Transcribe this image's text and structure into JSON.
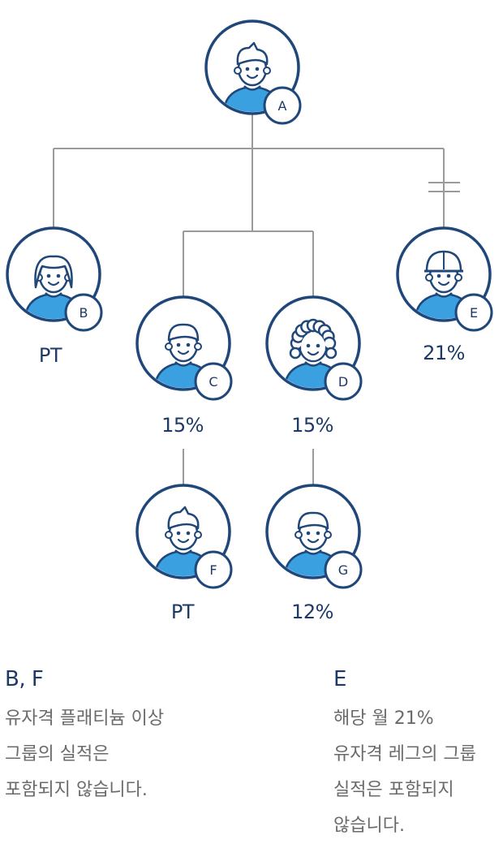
{
  "colors": {
    "ring": "#1f4779",
    "skin_stroke": "#1f4779",
    "shirt": "#3aa0e0",
    "line": "#9a9a9a",
    "text_dark": "#1d3a66",
    "text_gray": "#6a6a6a"
  },
  "nodes": {
    "A": {
      "letter": "A",
      "label": ""
    },
    "B": {
      "letter": "B",
      "label": "PT"
    },
    "C": {
      "letter": "C",
      "label": "15%"
    },
    "D": {
      "letter": "D",
      "label": "15%"
    },
    "E": {
      "letter": "E",
      "label": "21%"
    },
    "F": {
      "letter": "F",
      "label": "PT"
    },
    "G": {
      "letter": "G",
      "label": "12%"
    }
  },
  "notes": {
    "bf": {
      "title": "B, F",
      "lines": [
        "유자격 플래티늄 이상",
        "그룹의 실적은",
        "포함되지 않습니다."
      ]
    },
    "e": {
      "title": "E",
      "lines": [
        "해당 월 21%",
        "유자격 레그의 그룹",
        "실적은 포함되지",
        "않습니다."
      ]
    }
  }
}
